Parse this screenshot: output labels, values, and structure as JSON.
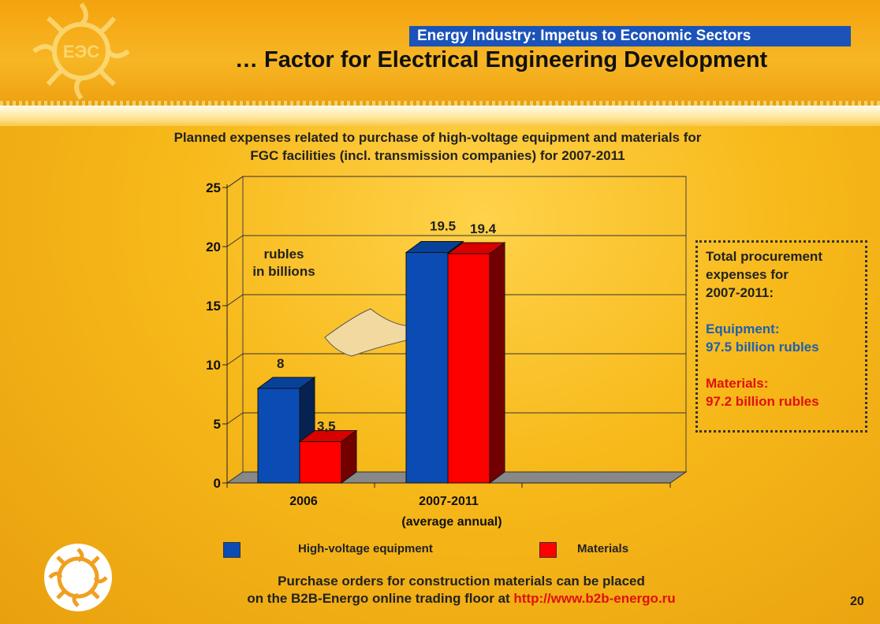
{
  "header": {
    "banner": "Energy Industry: Impetus to Economic Sectors",
    "title": "… Factor for Electrical Engineering Development"
  },
  "chart_data": {
    "type": "bar",
    "title_line1": "Planned expenses related to purchase of high-voltage equipment and materials for",
    "title_line2": "FGC facilities (incl. transmission companies) for 2007-2011",
    "unit_label_line1": "rubles",
    "unit_label_line2": "in billions",
    "categories": [
      "2006",
      "2007-2011"
    ],
    "category_sublabels": [
      "",
      "(average annual)"
    ],
    "series": [
      {
        "name": "High-voltage equipment",
        "values": [
          8,
          19.5
        ],
        "labels": [
          "8",
          "19.5"
        ],
        "color": "#0a4cb4"
      },
      {
        "name": "Materials",
        "values": [
          3.5,
          19.4
        ],
        "labels": [
          "3,5",
          "19.4"
        ],
        "color": "#ff0000"
      }
    ],
    "ylim": [
      0,
      25
    ],
    "yticks": [
      "0",
      "5",
      "10",
      "15",
      "20",
      "25"
    ],
    "grid": true,
    "legend": "bottom"
  },
  "summary": {
    "heading_line1": "Total procurement",
    "heading_line2": "expenses for",
    "heading_line3": "2007-2011:",
    "equipment_label": "Equipment:",
    "equipment_value": "97.5 billion rubles",
    "materials_label": "Materials:",
    "materials_value": "97.2 billion rubles"
  },
  "footer": {
    "line1": "Purchase orders for construction materials can be placed",
    "line2_prefix": "on the B2B-Energo online trading floor at ",
    "line2_url": "http://www.b2b-energo.ru"
  },
  "page_number": "20",
  "logo_text": "ЕЭС"
}
